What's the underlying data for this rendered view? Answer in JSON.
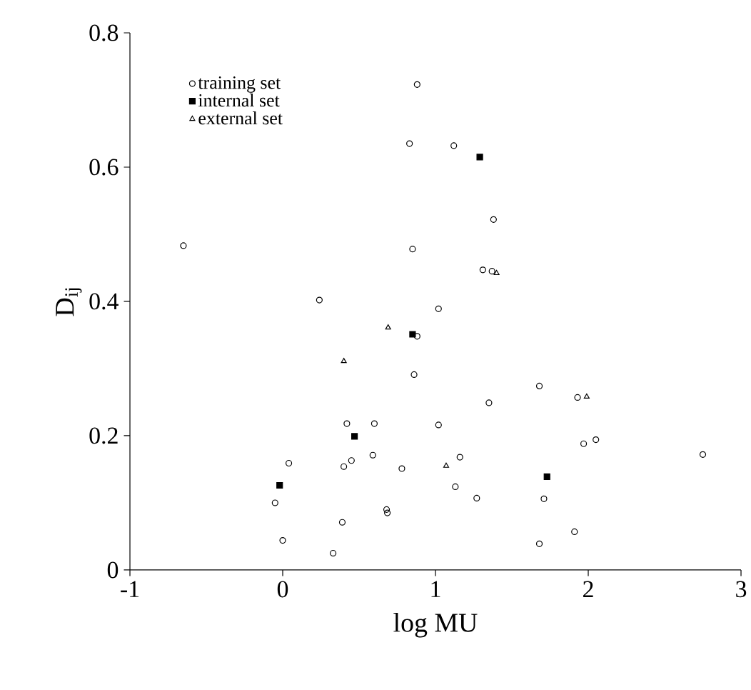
{
  "chart_data": {
    "type": "scatter",
    "xlabel": "log MU",
    "ylabel": "D$_{ij}$",
    "xlim": [
      -1,
      3
    ],
    "ylim": [
      0,
      0.8
    ],
    "xticks": [
      -1,
      0,
      1,
      2,
      3
    ],
    "yticks": [
      0,
      0.2,
      0.4,
      0.6,
      0.8
    ],
    "grid": false,
    "legend": "top left",
    "series": [
      {
        "name": "training set",
        "color": "#000000",
        "marker": "circle",
        "x": [
          0.88,
          0.83,
          -0.65,
          0.85,
          1.12,
          1.38,
          1.31,
          1.37,
          0.24,
          0.88,
          0.86,
          0.42,
          0.6,
          0.59,
          0.04,
          0.45,
          0.4,
          0.78,
          -0.05,
          0.68,
          0.685,
          0.39,
          0.0,
          1.02,
          1.68,
          1.35,
          1.93,
          1.02,
          1.97,
          2.05,
          2.75,
          1.16,
          1.13,
          1.27,
          1.71,
          1.91,
          0.33,
          1.68
        ],
        "values": [
          0.723,
          0.635,
          0.483,
          0.478,
          0.632,
          0.522,
          0.447,
          0.445,
          0.402,
          0.348,
          0.291,
          0.218,
          0.218,
          0.171,
          0.159,
          0.163,
          0.154,
          0.151,
          0.1,
          0.09,
          0.085,
          0.071,
          0.044,
          0.389,
          0.274,
          0.249,
          0.257,
          0.216,
          0.188,
          0.194,
          0.172,
          0.168,
          0.124,
          0.107,
          0.106,
          0.057,
          0.025,
          0.039
        ]
      },
      {
        "name": "internal set",
        "color": "#000000",
        "marker": "square",
        "x": [
          1.29,
          0.85,
          0.47,
          -0.02,
          1.73
        ],
        "values": [
          0.615,
          0.351,
          0.199,
          0.126,
          0.139
        ]
      },
      {
        "name": "external set",
        "color": "#000000",
        "marker": "triangle",
        "x": [
          1.4,
          0.69,
          0.4,
          1.99,
          1.07
        ],
        "values": [
          0.442,
          0.361,
          0.311,
          0.258,
          0.155
        ]
      }
    ]
  }
}
